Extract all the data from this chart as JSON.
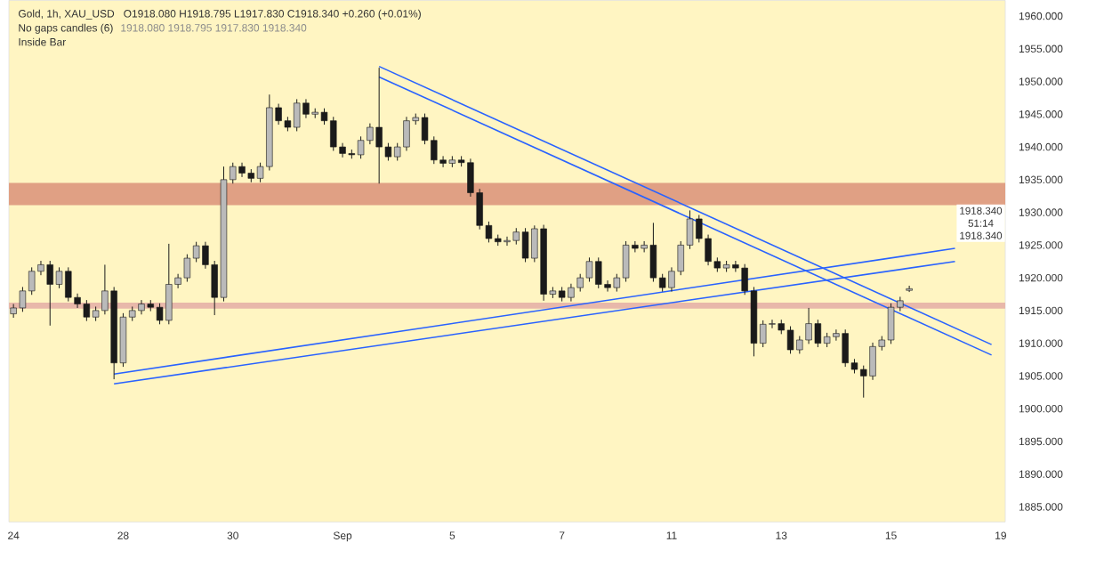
{
  "chart_data": {
    "type": "candlestick",
    "title": "Gold, 1h, XAU_USD",
    "subtitle": "O1918.080  H1918.795  L1917.830  C1918.340  +0.260 (+0.01%)",
    "annotations": [
      "No gaps candles (6)",
      "1918.080  1918.795  1917.830  1918.340",
      "Inside Bar",
      "1918.340",
      "51:14",
      "1918.340"
    ],
    "categories": [
      "24",
      null,
      null,
      null,
      null,
      null,
      null,
      null,
      null,
      null,
      null,
      null,
      "28",
      null,
      null,
      null,
      null,
      null,
      null,
      null,
      null,
      null,
      null,
      null,
      "30",
      null,
      null,
      null,
      null,
      null,
      null,
      null,
      null,
      null,
      null,
      null,
      "Sep",
      null,
      null,
      null,
      null,
      null,
      null,
      null,
      null,
      null,
      null,
      null,
      "5",
      null,
      null,
      null,
      null,
      null,
      null,
      null,
      null,
      null,
      null,
      null,
      "7",
      null,
      null,
      null,
      null,
      null,
      null,
      null,
      null,
      null,
      null,
      null,
      "11",
      null,
      null,
      null,
      null,
      null,
      null,
      null,
      null,
      null,
      null,
      null,
      "13",
      null,
      null,
      null,
      null,
      null,
      null,
      null,
      null,
      null,
      null,
      null,
      "15",
      null,
      null,
      null,
      null,
      null,
      null,
      null,
      null,
      null,
      null,
      null,
      "19"
    ],
    "color": "#1a1a1a",
    "ohlc": [
      [
        1914.5,
        1916.0,
        1913.9,
        1915.4
      ],
      [
        1915.4,
        1918.6,
        1914.8,
        1918
      ],
      [
        1918,
        1921.6,
        1917.4,
        1921
      ],
      [
        1921,
        1922.6,
        1920.4,
        1922
      ],
      [
        1922,
        1922.6,
        1912.7,
        1919
      ],
      [
        1919,
        1921.6,
        1918.4,
        1921
      ],
      [
        1921,
        1921.6,
        1916.4,
        1917
      ],
      [
        1917,
        1917.6,
        1915.4,
        1916
      ],
      [
        1916,
        1916.6,
        1913.4,
        1914
      ],
      [
        1914,
        1915.6,
        1913.4,
        1915
      ],
      [
        1915,
        1922,
        1914.4,
        1918
      ],
      [
        1918,
        1918.6,
        1904.5,
        1907
      ],
      [
        1907,
        1914.6,
        1906.4,
        1914
      ],
      [
        1914,
        1915.6,
        1913.4,
        1915
      ],
      [
        1915,
        1916.6,
        1914.4,
        1916
      ],
      [
        1916,
        1916.6,
        1914.9,
        1915.5
      ],
      [
        1915.5,
        1916.1,
        1912.9,
        1913.5
      ],
      [
        1913.5,
        1925.2,
        1912.9,
        1919
      ],
      [
        1919,
        1920.6,
        1918.4,
        1920
      ],
      [
        1920,
        1923.6,
        1919.4,
        1923
      ],
      [
        1923,
        1925.5,
        1922.4,
        1924.9
      ],
      [
        1924.9,
        1925.5,
        1921.4,
        1922
      ],
      [
        1922,
        1922.6,
        1914.3,
        1917
      ],
      [
        1917,
        1937,
        1916.4,
        1935
      ],
      [
        1935,
        1937.6,
        1934.4,
        1937
      ],
      [
        1937,
        1937.6,
        1935.4,
        1936
      ],
      [
        1936,
        1936.6,
        1934.6,
        1935.2
      ],
      [
        1935.2,
        1937.6,
        1934.6,
        1937
      ],
      [
        1937,
        1948,
        1936.4,
        1946
      ],
      [
        1946,
        1946.6,
        1943.4,
        1944
      ],
      [
        1944,
        1944.6,
        1942.4,
        1943
      ],
      [
        1943,
        1947.3,
        1942.4,
        1946.7
      ],
      [
        1946.7,
        1947.3,
        1944.4,
        1945
      ],
      [
        1945,
        1945.9,
        1944.4,
        1945.3
      ],
      [
        1945.3,
        1945.9,
        1943.4,
        1944
      ],
      [
        1944,
        1944.6,
        1939.4,
        1940
      ],
      [
        1940,
        1940.6,
        1938.4,
        1939
      ],
      [
        1939,
        1939.6,
        1938.2,
        1938.8
      ],
      [
        1938.8,
        1941.6,
        1938.2,
        1941
      ],
      [
        1941,
        1943.6,
        1940.4,
        1943
      ],
      [
        1943,
        1952.1,
        1934.4,
        1940
      ],
      [
        1940,
        1940.6,
        1937.9,
        1938.5
      ],
      [
        1938.5,
        1940.6,
        1937.9,
        1940
      ],
      [
        1940,
        1944.6,
        1939.4,
        1944
      ],
      [
        1944,
        1945.1,
        1943.4,
        1944.5
      ],
      [
        1944.5,
        1945.1,
        1940.4,
        1941
      ],
      [
        1941,
        1941.6,
        1937.4,
        1938
      ],
      [
        1938,
        1938.6,
        1936.9,
        1937.5
      ],
      [
        1937.5,
        1938.6,
        1936.9,
        1938
      ],
      [
        1938,
        1938.6,
        1937,
        1937.6
      ],
      [
        1937.6,
        1938.2,
        1932.4,
        1933
      ],
      [
        1933,
        1933.6,
        1927.4,
        1928
      ],
      [
        1928,
        1928.6,
        1925.4,
        1926
      ],
      [
        1926,
        1926.6,
        1924.9,
        1925.5
      ],
      [
        1925.5,
        1926.3,
        1924.9,
        1925.7
      ],
      [
        1925.7,
        1927.6,
        1925.1,
        1927
      ],
      [
        1927,
        1927.6,
        1922.4,
        1923
      ],
      [
        1923,
        1928,
        1922.4,
        1927.5
      ],
      [
        1927.5,
        1928.1,
        1916.5,
        1917.5
      ],
      [
        1917.5,
        1918.6,
        1916.9,
        1918
      ],
      [
        1918,
        1918.6,
        1916.4,
        1917
      ],
      [
        1917,
        1919.1,
        1916.4,
        1918.5
      ],
      [
        1918.5,
        1920.6,
        1917.9,
        1920
      ],
      [
        1920,
        1923.1,
        1919.4,
        1922.5
      ],
      [
        1922.5,
        1923.1,
        1918.4,
        1919
      ],
      [
        1919,
        1919.6,
        1917.9,
        1918.5
      ],
      [
        1918.5,
        1920.6,
        1917.9,
        1920
      ],
      [
        1920,
        1925.6,
        1919.4,
        1925
      ],
      [
        1925,
        1925.6,
        1923.9,
        1924.5
      ],
      [
        1924.5,
        1925.6,
        1923.9,
        1925
      ],
      [
        1925,
        1928.4,
        1919.4,
        1920
      ],
      [
        1920,
        1920.6,
        1917.9,
        1918.5
      ],
      [
        1918.5,
        1921.6,
        1917.9,
        1921
      ],
      [
        1921,
        1925.6,
        1920.4,
        1925
      ],
      [
        1925,
        1930.3,
        1924.4,
        1929
      ],
      [
        1929,
        1929.6,
        1925.4,
        1926
      ],
      [
        1926,
        1926.6,
        1921.9,
        1922.5
      ],
      [
        1922.5,
        1923.1,
        1920.9,
        1921.5
      ],
      [
        1921.5,
        1922.6,
        1920.9,
        1922
      ],
      [
        1922,
        1922.6,
        1920.9,
        1921.5
      ],
      [
        1921.5,
        1922.1,
        1917.4,
        1918
      ],
      [
        1918,
        1918.6,
        1908,
        1910
      ],
      [
        1910,
        1913.5,
        1909.4,
        1912.9
      ],
      [
        1912.9,
        1913.6,
        1912.3,
        1913
      ],
      [
        1913,
        1913.6,
        1911.4,
        1912
      ],
      [
        1912,
        1912.6,
        1908.4,
        1909
      ],
      [
        1909,
        1911.1,
        1908.4,
        1910.5
      ],
      [
        1910.5,
        1915.4,
        1909.9,
        1913
      ],
      [
        1913,
        1913.6,
        1909.4,
        1910
      ],
      [
        1910,
        1911.6,
        1909.4,
        1911
      ],
      [
        1911,
        1912.1,
        1910.4,
        1911.5
      ],
      [
        1911.5,
        1912.1,
        1906.4,
        1907
      ],
      [
        1907,
        1907.6,
        1905.4,
        1906
      ],
      [
        1906,
        1906.6,
        1901.7,
        1905
      ],
      [
        1905,
        1910.1,
        1904.4,
        1909.5
      ],
      [
        1909.5,
        1911.1,
        1908.9,
        1910.5
      ],
      [
        1910.5,
        1916.1,
        1909.9,
        1915.5
      ],
      [
        1915.5,
        1917.1,
        1914.9,
        1916.5
      ],
      [
        1918.08,
        1918.795,
        1917.83,
        1918.34
      ],
      null,
      null,
      null,
      null,
      null,
      null,
      null,
      null,
      null,
      null
    ],
    "series": [
      {
        "type": "line",
        "color": "#2962ff",
        "values": [
          null,
          null,
          null,
          null,
          null,
          null,
          null,
          null,
          null,
          null,
          null,
          1905.3,
          null,
          null,
          null,
          null,
          null,
          null,
          null,
          null,
          null,
          null,
          null,
          null,
          null,
          null,
          null,
          null,
          null,
          null,
          null,
          null,
          null,
          null,
          null,
          null,
          null,
          null,
          null,
          null,
          null,
          null,
          null,
          null,
          null,
          null,
          null,
          null,
          null,
          null,
          null,
          null,
          null,
          null,
          null,
          null,
          null,
          null,
          null,
          null,
          null,
          null,
          null,
          null,
          null,
          null,
          null,
          null,
          null,
          null,
          null,
          null,
          null,
          null,
          null,
          null,
          null,
          null,
          null,
          null,
          null,
          null,
          null,
          null,
          null,
          null,
          null,
          null,
          null,
          null,
          null,
          null,
          null,
          null,
          null,
          null,
          null,
          null,
          null,
          null,
          null,
          null,
          null,
          1924.5,
          null,
          null,
          null,
          null,
          null
        ]
      },
      {
        "type": "line",
        "color": "#2962ff",
        "values": [
          null,
          null,
          null,
          null,
          null,
          null,
          null,
          null,
          null,
          null,
          null,
          1903.8,
          null,
          null,
          null,
          null,
          null,
          null,
          null,
          null,
          null,
          null,
          null,
          null,
          null,
          null,
          null,
          null,
          null,
          null,
          null,
          null,
          null,
          null,
          null,
          null,
          null,
          null,
          null,
          null,
          null,
          null,
          null,
          null,
          null,
          null,
          null,
          null,
          null,
          null,
          null,
          null,
          null,
          null,
          null,
          null,
          null,
          null,
          null,
          null,
          null,
          null,
          null,
          null,
          null,
          null,
          null,
          null,
          null,
          null,
          null,
          null,
          null,
          null,
          null,
          null,
          null,
          null,
          null,
          null,
          null,
          null,
          null,
          null,
          null,
          null,
          null,
          null,
          null,
          null,
          null,
          null,
          null,
          null,
          null,
          null,
          null,
          null,
          null,
          null,
          null,
          null,
          null,
          1922.5,
          null,
          null,
          null,
          null,
          null
        ]
      },
      {
        "type": "line",
        "color": "#2962ff",
        "values": [
          null,
          null,
          null,
          null,
          null,
          null,
          null,
          null,
          null,
          null,
          null,
          null,
          null,
          null,
          null,
          null,
          null,
          null,
          null,
          null,
          null,
          null,
          null,
          null,
          null,
          null,
          null,
          null,
          null,
          null,
          null,
          null,
          null,
          null,
          null,
          null,
          null,
          null,
          null,
          null,
          1952.3,
          null,
          null,
          null,
          null,
          null,
          null,
          null,
          null,
          null,
          null,
          null,
          null,
          null,
          null,
          null,
          null,
          null,
          null,
          null,
          null,
          null,
          null,
          null,
          null,
          null,
          null,
          null,
          null,
          null,
          null,
          null,
          null,
          null,
          null,
          null,
          null,
          null,
          null,
          null,
          null,
          null,
          null,
          null,
          null,
          null,
          null,
          null,
          null,
          null,
          null,
          null,
          null,
          null,
          null,
          null,
          null,
          null,
          null,
          null,
          null,
          null,
          null,
          null,
          null,
          null,
          null,
          1909.8,
          null
        ]
      },
      {
        "type": "line",
        "color": "#2962ff",
        "values": [
          null,
          null,
          null,
          null,
          null,
          null,
          null,
          null,
          null,
          null,
          null,
          null,
          null,
          null,
          null,
          null,
          null,
          null,
          null,
          null,
          null,
          null,
          null,
          null,
          null,
          null,
          null,
          null,
          null,
          null,
          null,
          null,
          null,
          null,
          null,
          null,
          null,
          null,
          null,
          null,
          1950.7,
          null,
          null,
          null,
          null,
          null,
          null,
          null,
          null,
          null,
          null,
          null,
          null,
          null,
          null,
          null,
          null,
          null,
          null,
          null,
          null,
          null,
          null,
          null,
          null,
          null,
          null,
          null,
          null,
          null,
          null,
          null,
          null,
          null,
          null,
          null,
          null,
          null,
          null,
          null,
          null,
          null,
          null,
          null,
          null,
          null,
          null,
          null,
          null,
          null,
          null,
          null,
          null,
          null,
          null,
          null,
          null,
          null,
          null,
          null,
          null,
          null,
          null,
          null,
          null,
          null,
          null,
          1908.2,
          null
        ]
      }
    ],
    "bands": [
      {
        "axis": "y",
        "from": 1931.1,
        "to": 1934.5,
        "color": "#e0a084"
      },
      {
        "axis": "y",
        "from": 1915.3,
        "to": 1916.2,
        "color": "#e8b8aa"
      }
    ],
    "ylim": [
      1882.7,
      1962.4
    ],
    "yticks": [
      {
        "value": 1885,
        "label": "1885.000"
      },
      {
        "value": 1890,
        "label": "1890.000"
      },
      {
        "value": 1895,
        "label": "1895.000"
      },
      {
        "value": 1900,
        "label": "1900.000"
      },
      {
        "value": 1905,
        "label": "1905.000"
      },
      {
        "value": 1910,
        "label": "1910.000"
      },
      {
        "value": 1915,
        "label": "1915.000"
      },
      {
        "value": 1920,
        "label": "1920.000"
      },
      {
        "value": 1925,
        "label": "1925.000"
      },
      {
        "value": 1930,
        "label": "1930.000"
      },
      {
        "value": 1935,
        "label": "1935.000"
      },
      {
        "value": 1940,
        "label": "1940.000"
      },
      {
        "value": 1945,
        "label": "1945.000"
      },
      {
        "value": 1950,
        "label": "1950.000"
      },
      {
        "value": 1955,
        "label": "1955.000"
      },
      {
        "value": 1960,
        "label": "1960.000"
      }
    ]
  }
}
